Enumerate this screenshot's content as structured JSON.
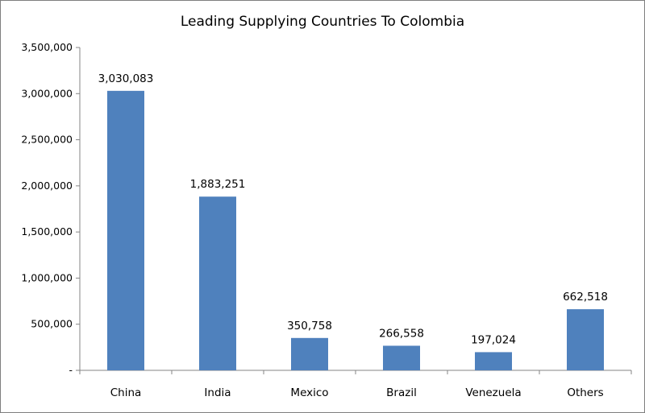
{
  "chart_data": {
    "type": "bar",
    "title": "Leading Supplying Countries To Colombia",
    "xlabel": "",
    "ylabel": "",
    "categories": [
      "China",
      "India",
      "Mexico",
      "Brazil",
      "Venezuela",
      "Others"
    ],
    "values": [
      3030083,
      1883251,
      350758,
      266558,
      197024,
      662518
    ],
    "data_labels": [
      "3,030,083",
      "1,883,251",
      "350,758",
      "266,558",
      "197,024",
      "662,518"
    ],
    "ylim": [
      0,
      3500000
    ],
    "yticks": [
      0,
      500000,
      1000000,
      1500000,
      2000000,
      2500000,
      3000000,
      3500000
    ],
    "ytick_labels": [
      "-",
      "500,000",
      "1,000,000",
      "1,500,000",
      "2,000,000",
      "2,500,000",
      "3,000,000",
      "3,500,000"
    ],
    "grid": false,
    "legend": "none",
    "colors": {
      "bar": "#4f81bd",
      "axis": "#868686"
    }
  }
}
